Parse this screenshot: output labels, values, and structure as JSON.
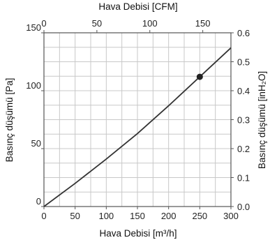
{
  "chart_data": {
    "type": "line",
    "title": "",
    "x_bottom": {
      "label": "Hava Debisi [m³/h]",
      "range": [
        0,
        300
      ],
      "ticks": [
        "0",
        "50",
        "100",
        "150",
        "200",
        "250",
        "300"
      ]
    },
    "x_top": {
      "label": "Hava Debisi [CFM]",
      "range": [
        0,
        176.6
      ],
      "ticks": [
        "0",
        "50",
        "100",
        "150"
      ]
    },
    "y_left": {
      "label": "Basınç düşümü [Pa]",
      "range": [
        0,
        150
      ],
      "ticks": [
        "0",
        "50",
        "100",
        "150"
      ]
    },
    "y_right": {
      "label": "Basınç düşümü [inH₂O]",
      "range": [
        0,
        0.6
      ],
      "ticks": [
        "0.0",
        "0.1",
        "0.2",
        "0.3",
        "0.4",
        "0.5",
        "0.6"
      ]
    },
    "grid": true,
    "series": [
      {
        "x": [
          0,
          50,
          100,
          150,
          200,
          250,
          300
        ],
        "y": [
          0,
          20,
          41,
          63,
          87,
          112,
          137
        ]
      }
    ],
    "marker": {
      "x": 250,
      "y": 112
    },
    "colors": {
      "line": "#333333",
      "grid": "#c8c8c8",
      "frame": "#555555",
      "marker": "#222222"
    }
  }
}
